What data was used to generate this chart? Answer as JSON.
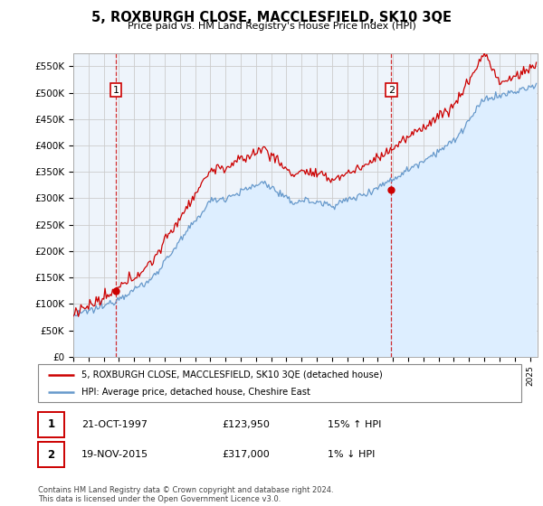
{
  "title": "5, ROXBURGH CLOSE, MACCLESFIELD, SK10 3QE",
  "subtitle": "Price paid vs. HM Land Registry's House Price Index (HPI)",
  "ylim": [
    0,
    575000
  ],
  "xlim_start": 1995.0,
  "xlim_end": 2025.5,
  "transaction1": {
    "date_num": 1997.79,
    "price": 123950,
    "label": "1",
    "note": "21-OCT-1997",
    "amount": "£123,950",
    "hpi": "15% ↑ HPI"
  },
  "transaction2": {
    "date_num": 2015.88,
    "price": 317000,
    "label": "2",
    "note": "19-NOV-2015",
    "amount": "£317,000",
    "hpi": "1% ↓ HPI"
  },
  "legend_line1": "5, ROXBURGH CLOSE, MACCLESFIELD, SK10 3QE (detached house)",
  "legend_line2": "HPI: Average price, detached house, Cheshire East",
  "footnote": "Contains HM Land Registry data © Crown copyright and database right 2024.\nThis data is licensed under the Open Government Licence v3.0.",
  "property_color": "#cc0000",
  "hpi_color": "#6699cc",
  "hpi_fill_color": "#ddeeff",
  "vline_color": "#cc0000",
  "background_color": "#ffffff",
  "grid_color": "#cccccc",
  "chart_bg": "#eef4fb"
}
